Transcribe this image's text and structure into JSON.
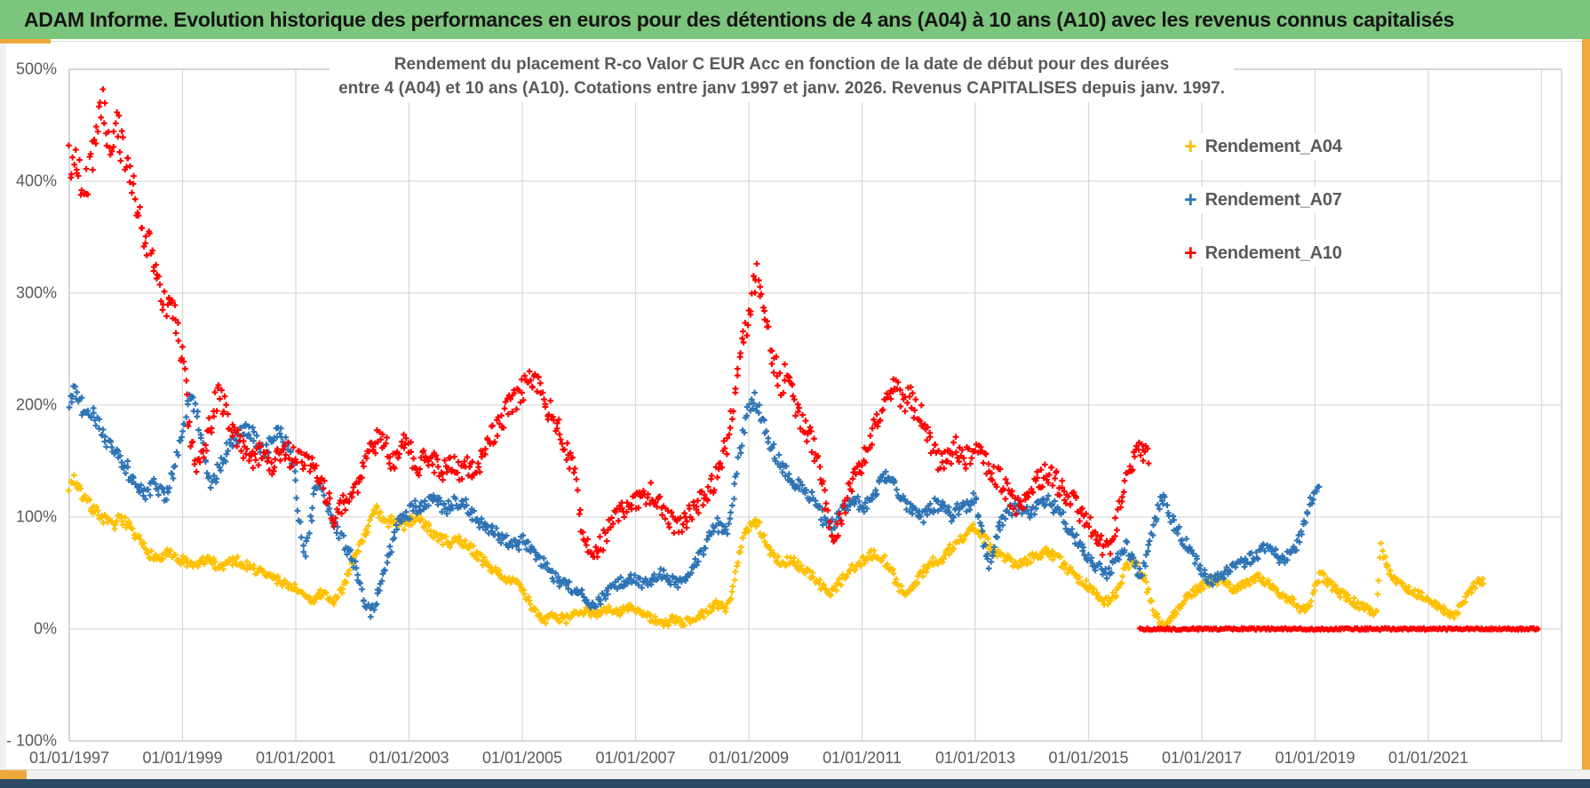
{
  "header": {
    "title": "ADAM Informe. Evolution historique des performances en euros pour des détentions de 4 ans (A04) à 10 ans (A10) avec les revenus connus capitalisés"
  },
  "colors": {
    "header_bg": "#7cc57c",
    "accent_gold": "#eea83c",
    "bottom_bar": "#2c4a63",
    "gridline": "#d9d9d9",
    "plot_border": "#c8c8c8",
    "axis_text": "#595959",
    "title_text": "#595959"
  },
  "chart_data": {
    "type": "scatter",
    "marker": "plus",
    "title_line1": "Rendement du placement R-co Valor C EUR Acc en fonction de la date de début pour des durées",
    "title_line2": "entre 4 (A04) et 10 ans (A10). Cotations entre janv 1997 et janv. 2026. Revenus CAPITALISES depuis janv. 1997.",
    "legend_position": "right",
    "grid": true,
    "jitter_seed": 7,
    "points_per_month": 4,
    "y_axis": {
      "min": -100,
      "max": 500,
      "step": 100,
      "ticks": [
        {
          "value": 500,
          "label": "500%"
        },
        {
          "value": 400,
          "label": "400%"
        },
        {
          "value": 300,
          "label": "300%"
        },
        {
          "value": 200,
          "label": "200%"
        },
        {
          "value": 100,
          "label": "100%"
        },
        {
          "value": 0,
          "label": "0%"
        },
        {
          "value": -100,
          "label": "- 100%"
        }
      ]
    },
    "x_axis": {
      "start_year": 1997,
      "end_year": 2023.4,
      "gridline_years": [
        1997,
        1999,
        2001,
        2003,
        2005,
        2007,
        2009,
        2011,
        2013,
        2015,
        2017,
        2019,
        2021,
        2023
      ],
      "ticks": [
        {
          "year": 1997,
          "label": "01/01/1997"
        },
        {
          "year": 1999,
          "label": "01/01/1999"
        },
        {
          "year": 2001,
          "label": "01/01/2001"
        },
        {
          "year": 2003,
          "label": "01/01/2003"
        },
        {
          "year": 2005,
          "label": "01/01/2005"
        },
        {
          "year": 2007,
          "label": "01/01/2007"
        },
        {
          "year": 2009,
          "label": "01/01/2009"
        },
        {
          "year": 2011,
          "label": "01/01/2011"
        },
        {
          "year": 2013,
          "label": "01/01/2013"
        },
        {
          "year": 2015,
          "label": "01/01/2015"
        },
        {
          "year": 2017,
          "label": "01/01/2017"
        },
        {
          "year": 2019,
          "label": "01/01/2019"
        },
        {
          "year": 2021,
          "label": "01/01/2021"
        }
      ]
    },
    "series": [
      {
        "name": "Rendement_A04",
        "color": "#FFC000",
        "start_year": 1997,
        "noise_pct": 3.5,
        "monthly_values": [
          [
            128,
            135,
            125,
            118,
            112,
            108,
            104,
            100,
            96,
            92,
            96,
            100
          ],
          [
            95,
            88,
            82,
            78,
            72,
            68,
            65,
            62,
            65,
            68,
            64,
            60
          ],
          [
            62,
            58,
            55,
            57,
            60,
            62,
            60,
            58,
            56,
            58,
            60,
            62
          ],
          [
            60,
            58,
            56,
            54,
            52,
            50,
            48,
            46,
            44,
            42,
            40,
            38
          ],
          [
            36,
            32,
            28,
            25,
            28,
            32,
            30,
            27,
            24,
            30,
            38,
            48
          ],
          [
            58,
            68,
            78,
            88,
            98,
            106,
            100,
            93,
            96,
            98,
            95,
            92
          ],
          [
            96,
            99,
            100,
            96,
            90,
            85,
            82,
            80,
            78,
            76,
            78,
            80
          ],
          [
            75,
            72,
            68,
            64,
            60,
            56,
            52,
            50,
            48,
            45,
            42,
            40
          ],
          [
            34,
            27,
            20,
            14,
            10,
            8,
            10,
            12,
            10,
            8,
            10,
            12
          ],
          [
            14,
            16,
            15,
            13,
            15,
            17,
            18,
            16,
            14,
            16,
            18,
            20
          ],
          [
            18,
            15,
            12,
            10,
            8,
            6,
            4,
            6,
            9,
            7,
            5,
            7
          ],
          [
            9,
            11,
            13,
            15,
            18,
            22,
            20,
            18,
            26,
            46,
            66,
            82
          ],
          [
            92,
            98,
            94,
            84,
            74,
            67,
            62,
            58,
            60,
            62,
            58,
            55
          ],
          [
            52,
            48,
            45,
            40,
            35,
            32,
            35,
            40,
            45,
            50,
            55,
            58
          ],
          [
            60,
            63,
            66,
            68,
            65,
            60,
            54,
            45,
            36,
            30,
            34,
            40
          ],
          [
            46,
            51,
            56,
            60,
            58,
            62,
            68,
            72,
            78,
            82,
            85,
            88
          ],
          [
            90,
            85,
            80,
            75,
            70,
            68,
            65,
            62,
            60,
            58,
            60,
            62
          ],
          [
            64,
            66,
            68,
            70,
            68,
            64,
            60,
            56,
            52,
            48,
            45,
            42
          ],
          [
            38,
            34,
            30,
            26,
            24,
            28,
            35,
            45,
            55,
            62,
            58,
            52
          ],
          [
            44,
            28,
            14,
            7,
            5,
            8,
            12,
            18,
            24,
            28,
            32,
            35
          ],
          [
            38,
            40,
            42,
            44,
            42,
            40,
            38,
            36,
            38,
            40,
            42,
            44
          ],
          [
            46,
            44,
            40,
            36,
            32,
            30,
            28,
            25,
            22,
            18,
            16,
            20
          ],
          [
            40,
            48,
            45,
            40,
            36,
            33,
            30,
            28,
            25,
            22,
            20,
            18
          ],
          [
            17,
            15,
            75,
            60,
            50,
            45,
            42,
            38,
            35,
            32,
            30,
            28
          ],
          [
            26,
            24,
            22,
            18,
            14,
            12,
            15,
            20,
            28,
            35,
            40,
            44
          ]
        ]
      },
      {
        "name": "Rendement_A07",
        "color": "#2E74B5",
        "start_year": 1997,
        "noise_pct": 4.5,
        "monthly_values": [
          [
            200,
            212,
            205,
            195,
            188,
            192,
            185,
            175,
            168,
            160,
            155,
            150
          ],
          [
            145,
            138,
            130,
            125,
            120,
            125,
            130,
            125,
            118,
            125,
            140,
            160
          ],
          [
            180,
            198,
            208,
            196,
            172,
            148,
            132,
            136,
            146,
            156,
            162,
            168
          ],
          [
            172,
            176,
            178,
            172,
            165,
            158,
            162,
            170,
            175,
            171,
            164,
            157
          ],
          [
            130,
            90,
            68,
            95,
            125,
            135,
            120,
            108,
            96,
            86,
            78,
            70
          ],
          [
            62,
            48,
            32,
            20,
            14,
            24,
            38,
            54,
            70,
            85,
            95,
            100
          ],
          [
            104,
            109,
            107,
            111,
            114,
            117,
            114,
            110,
            108,
            112,
            115,
            112
          ],
          [
            110,
            106,
            101,
            96,
            91,
            88,
            86,
            83,
            80,
            78,
            76,
            73
          ],
          [
            80,
            76,
            71,
            66,
            61,
            56,
            51,
            46,
            42,
            40,
            38,
            35
          ],
          [
            32,
            28,
            24,
            22,
            25,
            29,
            34,
            38,
            40,
            42,
            44,
            45
          ],
          [
            45,
            42,
            40,
            42,
            45,
            48,
            50,
            46,
            42,
            40,
            44,
            50
          ],
          [
            55,
            60,
            68,
            75,
            84,
            94,
            90,
            86,
            96,
            125,
            155,
            180
          ],
          [
            196,
            206,
            199,
            186,
            171,
            161,
            151,
            146,
            140,
            135,
            131,
            128
          ],
          [
            124,
            119,
            114,
            105,
            96,
            92,
            95,
            100,
            105,
            110,
            114,
            112
          ],
          [
            108,
            112,
            118,
            125,
            132,
            138,
            134,
            127,
            119,
            112,
            108,
            105
          ],
          [
            102,
            100,
            104,
            109,
            112,
            108,
            105,
            102,
            105,
            108,
            110,
            113
          ],
          [
            118,
            96,
            70,
            58,
            76,
            90,
            100,
            105,
            108,
            110,
            108,
            105
          ],
          [
            105,
            108,
            112,
            115,
            112,
            108,
            102,
            95,
            88,
            82,
            76,
            70
          ],
          [
            65,
            60,
            55,
            52,
            50,
            55,
            62,
            70,
            74,
            65,
            55,
            50
          ],
          [
            56,
            76,
            96,
            112,
            115,
            104,
            94,
            87,
            81,
            74,
            67,
            59
          ],
          [
            52,
            46,
            42,
            45,
            48,
            50,
            52,
            55,
            58,
            60,
            62,
            65
          ],
          [
            68,
            72,
            75,
            70,
            65,
            62,
            65,
            70,
            75,
            85,
            100,
            115
          ],
          [
            122
          ]
        ]
      },
      {
        "name": "Rendement_A10",
        "color": "#FF0000",
        "start_year": 1997,
        "noise_pct": 7,
        "monthly_values": [
          [
            415,
            425,
            408,
            388,
            405,
            425,
            445,
            465,
            440,
            420,
            452,
            435
          ],
          [
            418,
            400,
            385,
            368,
            352,
            338,
            328,
            308,
            288,
            298,
            282,
            262
          ],
          [
            240,
            200,
            165,
            140,
            150,
            170,
            185,
            200,
            208,
            196,
            182,
            172
          ],
          [
            166,
            160,
            155,
            150,
            154,
            158,
            150,
            146,
            150,
            155,
            160,
            150
          ],
          [
            155,
            150,
            145,
            150,
            140,
            130,
            124,
            114,
            100,
            104,
            110,
            120
          ],
          [
            122,
            132,
            142,
            152,
            162,
            166,
            170,
            164,
            155,
            150,
            160,
            165
          ],
          [
            160,
            152,
            146,
            150,
            155,
            150,
            145,
            140,
            145,
            150,
            146,
            141
          ],
          [
            146,
            141,
            145,
            150,
            156,
            165,
            175,
            181,
            190,
            196,
            200,
            206
          ],
          [
            212,
            222,
            228,
            224,
            214,
            204,
            194,
            184,
            174,
            164,
            154,
            148
          ],
          [
            106,
            86,
            72,
            68,
            70,
            78,
            88,
            95,
            100,
            105,
            110,
            112
          ],
          [
            112,
            116,
            120,
            122,
            118,
            112,
            106,
            100,
            96,
            92,
            95,
            100
          ],
          [
            105,
            110,
            115,
            120,
            128,
            136,
            146,
            162,
            182,
            212,
            242,
            262
          ],
          [
            288,
            306,
            315,
            294,
            264,
            244,
            229,
            219,
            226,
            214,
            199,
            189
          ],
          [
            180,
            169,
            158,
            144,
            119,
            95,
            85,
            91,
            106,
            121,
            131,
            141
          ],
          [
            151,
            161,
            176,
            186,
            196,
            206,
            214,
            218,
            211,
            204,
            210,
            199
          ],
          [
            194,
            184,
            172,
            160,
            152,
            148,
            152,
            158,
            162,
            158,
            152,
            155
          ],
          [
            161,
            155,
            150,
            145,
            140,
            134,
            128,
            120,
            115,
            110,
            115,
            120
          ],
          [
            125,
            130,
            136,
            141,
            138,
            132,
            127,
            121,
            117,
            111,
            105,
            99
          ],
          [
            94,
            87,
            79,
            74,
            72,
            78,
            95,
            116,
            131,
            146,
            156,
            161
          ],
          [
            158
          ]
        ],
        "zero_segment": {
          "from_year": 2015.9,
          "to_year": 2022.95,
          "value": 0
        }
      }
    ]
  }
}
